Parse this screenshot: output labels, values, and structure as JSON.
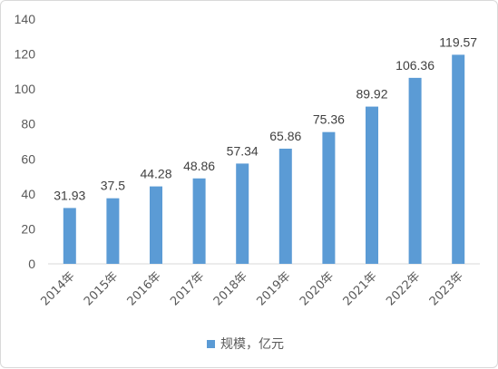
{
  "chart_data": {
    "type": "bar",
    "categories": [
      "2014年",
      "2015年",
      "2016年",
      "2017年",
      "2018年",
      "2019年",
      "2020年",
      "2021年",
      "2022年",
      "2023年"
    ],
    "series": [
      {
        "name": "规模，亿元",
        "values": [
          31.93,
          37.5,
          44.28,
          48.86,
          57.34,
          65.86,
          75.36,
          89.92,
          106.36,
          119.57
        ],
        "labels": [
          "31.93",
          "37.5",
          "44.28",
          "48.86",
          "57.34",
          "65.86",
          "75.36",
          "89.92",
          "106.36",
          "119.57"
        ],
        "color": "#5b9bd5"
      }
    ],
    "y_ticks": [
      0,
      20,
      40,
      60,
      80,
      100,
      120,
      140
    ],
    "ylim": [
      0,
      140
    ],
    "grid": false,
    "legend_position": "bottom",
    "axis_color": "#d9d9d9"
  }
}
